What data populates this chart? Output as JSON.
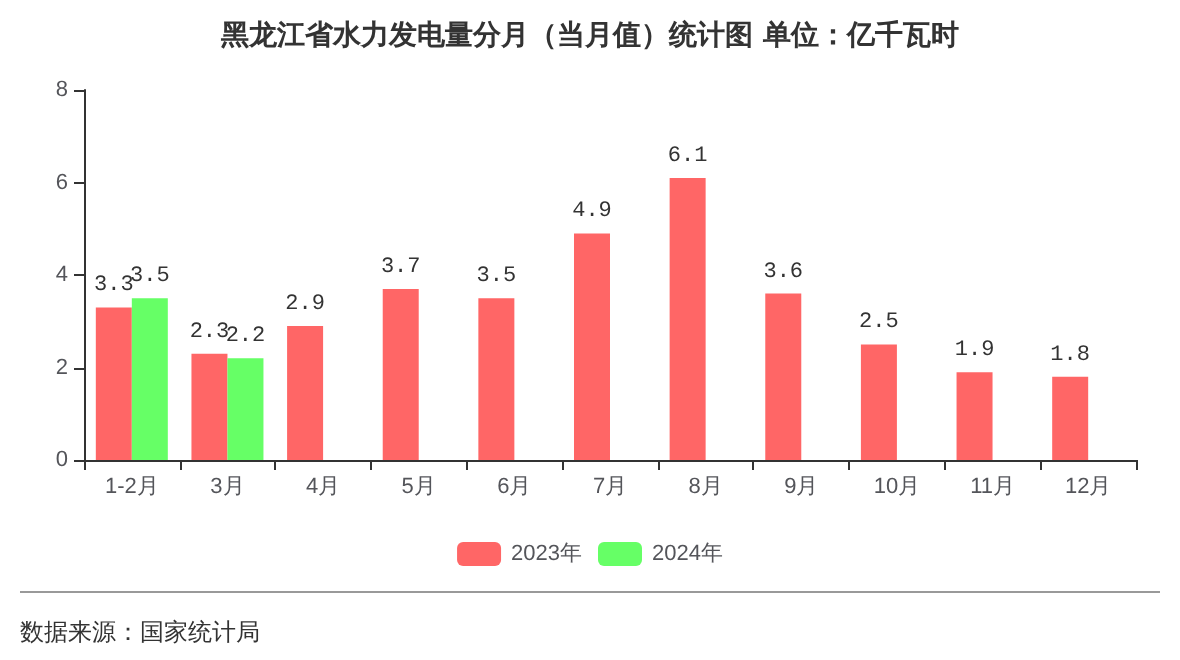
{
  "chart_data": {
    "type": "bar",
    "title": "黑龙江省水力发电量分月（当月值）统计图 单位：亿千瓦时",
    "categories": [
      "1-2月",
      "3月",
      "4月",
      "5月",
      "6月",
      "7月",
      "8月",
      "9月",
      "10月",
      "11月",
      "12月"
    ],
    "series": [
      {
        "name": "2023年",
        "color": "#ff6666",
        "values": [
          3.3,
          2.3,
          2.9,
          3.7,
          3.5,
          4.9,
          6.1,
          3.6,
          2.5,
          1.9,
          1.8
        ]
      },
      {
        "name": "2024年",
        "color": "#66ff66",
        "values": [
          3.5,
          2.2,
          null,
          null,
          null,
          null,
          null,
          null,
          null,
          null,
          null
        ]
      }
    ],
    "ylim": [
      0,
      8
    ],
    "yticks": [
      0,
      2,
      4,
      6,
      8
    ],
    "grid": false,
    "legend": "bottom",
    "data_labels": true,
    "annotations": [
      "数据来源：国家统计局"
    ]
  }
}
